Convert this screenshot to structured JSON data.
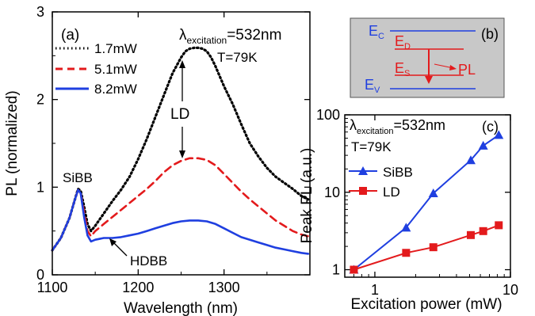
{
  "chart_data": [
    {
      "panel": "(a)",
      "type": "line",
      "xlabel": "Wavelength (nm)",
      "ylabel": "PL (normalized)",
      "xlim": [
        1100,
        1400
      ],
      "ylim": [
        0,
        3
      ],
      "xticks": [
        "1100",
        "1200",
        "1300"
      ],
      "yticks": [
        "0",
        "1",
        "2",
        "3"
      ],
      "annotations": {
        "excitation_symbol": "λ",
        "excitation_sub": "excitation",
        "excitation_value": "=532nm",
        "temperature": "T=79K",
        "ld": "LD",
        "sibb": "SiBB",
        "hdbb": "HDBB"
      },
      "legend_position": "top-left",
      "series": [
        {
          "name": "1.7mW",
          "color": "#000000",
          "style": "dotted",
          "x": [
            1100,
            1110,
            1120,
            1126,
            1130,
            1133,
            1137,
            1141,
            1145,
            1150,
            1160,
            1170,
            1180,
            1190,
            1200,
            1210,
            1220,
            1230,
            1240,
            1250,
            1255,
            1260,
            1265,
            1270,
            1275,
            1280,
            1285,
            1290,
            1300,
            1310,
            1320,
            1330,
            1340,
            1350,
            1360,
            1370,
            1380,
            1390,
            1398
          ],
          "y": [
            0.28,
            0.42,
            0.65,
            0.85,
            0.98,
            0.96,
            0.78,
            0.58,
            0.5,
            0.56,
            0.7,
            0.84,
            0.97,
            1.12,
            1.32,
            1.55,
            1.8,
            2.05,
            2.3,
            2.48,
            2.55,
            2.58,
            2.59,
            2.59,
            2.58,
            2.55,
            2.48,
            2.38,
            2.15,
            1.95,
            1.72,
            1.5,
            1.35,
            1.22,
            1.12,
            1.05,
            0.98,
            0.9,
            0.86
          ]
        },
        {
          "name": "5.1mW",
          "color": "#e31a1c",
          "style": "dashed",
          "x": [
            1100,
            1110,
            1120,
            1126,
            1130,
            1133,
            1137,
            1141,
            1145,
            1150,
            1160,
            1170,
            1180,
            1190,
            1200,
            1210,
            1220,
            1230,
            1240,
            1250,
            1260,
            1270,
            1280,
            1290,
            1300,
            1310,
            1320,
            1330,
            1340,
            1350,
            1360,
            1370,
            1380,
            1390,
            1398
          ],
          "y": [
            0.28,
            0.42,
            0.65,
            0.85,
            0.97,
            0.93,
            0.72,
            0.5,
            0.44,
            0.5,
            0.58,
            0.66,
            0.74,
            0.82,
            0.9,
            0.98,
            1.07,
            1.17,
            1.25,
            1.3,
            1.33,
            1.33,
            1.31,
            1.25,
            1.15,
            1.05,
            0.95,
            0.86,
            0.78,
            0.7,
            0.62,
            0.56,
            0.5,
            0.46,
            0.44
          ]
        },
        {
          "name": "8.2mW",
          "color": "#1f3fe0",
          "style": "solid",
          "x": [
            1100,
            1110,
            1120,
            1126,
            1130,
            1133,
            1137,
            1141,
            1145,
            1150,
            1160,
            1170,
            1180,
            1190,
            1200,
            1210,
            1220,
            1230,
            1240,
            1250,
            1260,
            1270,
            1280,
            1290,
            1300,
            1310,
            1320,
            1330,
            1340,
            1350,
            1360,
            1370,
            1380,
            1390,
            1398
          ],
          "y": [
            0.28,
            0.42,
            0.65,
            0.85,
            0.97,
            0.93,
            0.66,
            0.45,
            0.38,
            0.4,
            0.42,
            0.42,
            0.43,
            0.45,
            0.47,
            0.5,
            0.53,
            0.56,
            0.59,
            0.61,
            0.62,
            0.62,
            0.61,
            0.58,
            0.53,
            0.48,
            0.43,
            0.4,
            0.37,
            0.34,
            0.31,
            0.29,
            0.27,
            0.25,
            0.24
          ]
        }
      ]
    },
    {
      "panel": "(b)",
      "type": "diagram",
      "labels": {
        "ec": "E",
        "ec_sub": "C",
        "ed": "E",
        "ed_sub": "D",
        "es": "E",
        "es_sub": "S",
        "ev": "E",
        "ev_sub": "V",
        "pl": "PL"
      },
      "background": "#c8c8c8",
      "band_color": "#1f3fe0",
      "level_color": "#e31a1c"
    },
    {
      "panel": "(c)",
      "type": "line",
      "xscale": "log",
      "yscale": "log",
      "xlabel": "Excitation power (mW)",
      "ylabel": "Peak PL (a.u.)",
      "xlim": [
        0.6,
        10
      ],
      "ylim": [
        0.8,
        100
      ],
      "xticks": [
        "1",
        "10"
      ],
      "yticks": [
        "1",
        "10",
        "100"
      ],
      "annotations": {
        "excitation_symbol": "λ",
        "excitation_sub": "excitation",
        "excitation_value": "=532nm",
        "temperature": "T=79K"
      },
      "legend_position": "left",
      "series": [
        {
          "name": "SiBB",
          "color": "#1f3fe0",
          "marker": "triangle",
          "x": [
            0.7,
            1.7,
            2.7,
            5.1,
            6.3,
            8.2
          ],
          "y": [
            1.0,
            3.5,
            9.7,
            26,
            40,
            55
          ]
        },
        {
          "name": "LD",
          "color": "#e31a1c",
          "marker": "square",
          "x": [
            0.7,
            1.7,
            2.7,
            5.1,
            6.3,
            8.2
          ],
          "y": [
            1.0,
            1.65,
            1.95,
            2.8,
            3.15,
            3.75
          ]
        }
      ]
    }
  ]
}
